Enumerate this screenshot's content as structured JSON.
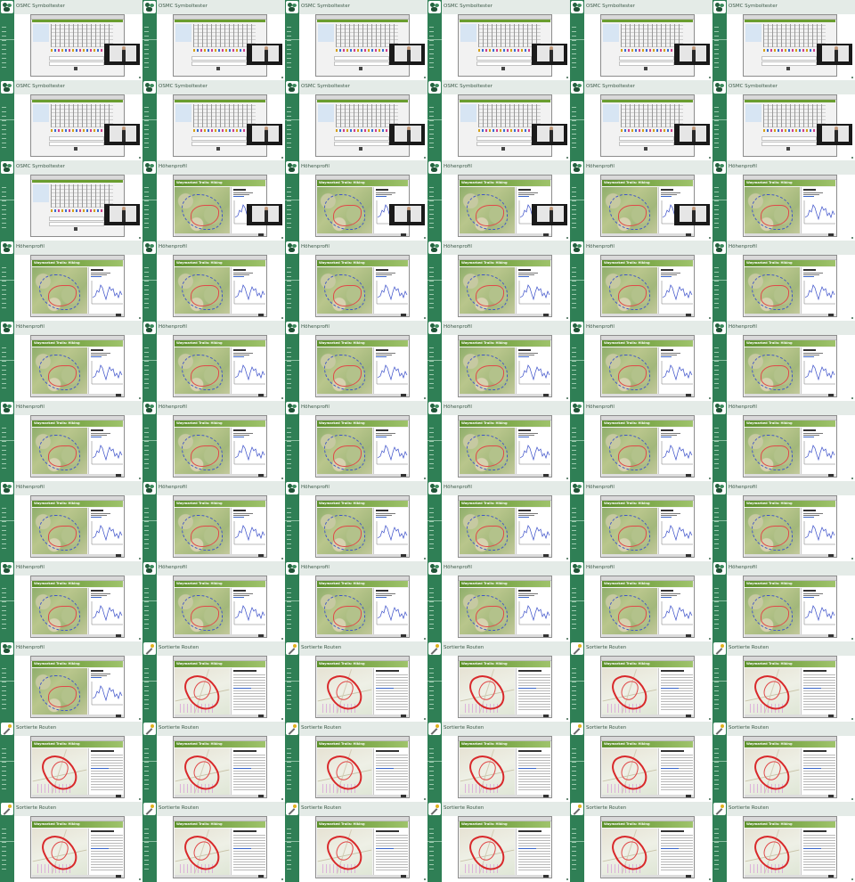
{
  "layout": {
    "columns": 6,
    "rows": 11
  },
  "themes": {
    "symbol": {
      "title": "OSMC Symboltester",
      "icon": "forest-logo-icon"
    },
    "elevation": {
      "title": "Höhenprofil",
      "icon": "forest-logo-icon",
      "app_title": "Waymarked Trails: Hiking"
    },
    "routes": {
      "title": "Sortierte Routen",
      "icon": "magic-wand-icon",
      "app_title": "Waymarked Trails: Hiking"
    }
  },
  "tile_sequence": [
    "symbol",
    "symbol",
    "symbol",
    "symbol",
    "symbol",
    "symbol",
    "symbol",
    "symbol",
    "symbol",
    "symbol",
    "symbol",
    "symbol",
    "symbol",
    "elevation_presenter",
    "elevation_presenter",
    "elevation_presenter",
    "elevation_presenter",
    "elevation",
    "elevation",
    "elevation",
    "elevation",
    "elevation",
    "elevation",
    "elevation",
    "elevation",
    "elevation",
    "elevation",
    "elevation",
    "elevation",
    "elevation",
    "elevation",
    "elevation",
    "elevation",
    "elevation",
    "elevation",
    "elevation",
    "elevation",
    "elevation",
    "elevation",
    "elevation",
    "elevation",
    "elevation",
    "elevation",
    "elevation",
    "elevation",
    "elevation",
    "elevation",
    "elevation",
    "elevation",
    "routes",
    "routes",
    "routes",
    "routes",
    "routes",
    "routes",
    "routes",
    "routes",
    "routes",
    "routes",
    "routes",
    "routes",
    "routes",
    "routes",
    "routes",
    "routes",
    "routes"
  ],
  "colors": {
    "sidebar": "#2f7f55",
    "header": "#e4ebe7",
    "title_text": "#3d5a49",
    "route_line": "#d9292b",
    "profile_line": "#3a4fc9"
  }
}
